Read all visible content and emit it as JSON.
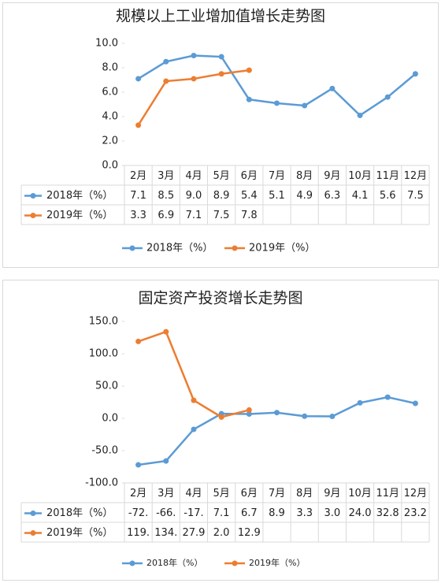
{
  "chart_data": [
    {
      "type": "line",
      "title": "规模以上工业增加值增长走势图",
      "categories": [
        "2月",
        "3月",
        "4月",
        "5月",
        "6月",
        "7月",
        "8月",
        "9月",
        "10月",
        "11月",
        "12月"
      ],
      "ylim": [
        0,
        10
      ],
      "yticks": [
        {
          "value": 0,
          "label": "0.0"
        },
        {
          "value": 2,
          "label": "2.0"
        },
        {
          "value": 4,
          "label": "4.0"
        },
        {
          "value": 6,
          "label": "6.0"
        },
        {
          "value": 8,
          "label": "8.0"
        },
        {
          "value": 10,
          "label": "10.0"
        }
      ],
      "grid": false,
      "legend": "bottom",
      "series": [
        {
          "name": "2018年（%）",
          "color": "#5b9bd5",
          "values": [
            7.1,
            8.5,
            9.0,
            8.9,
            5.4,
            5.1,
            4.9,
            6.3,
            4.1,
            5.6,
            7.5
          ],
          "value_labels": [
            "7.1",
            "8.5",
            "9.0",
            "8.9",
            "5.4",
            "5.1",
            "4.9",
            "6.3",
            "4.1",
            "5.6",
            "7.5"
          ]
        },
        {
          "name": "2019年（%）",
          "color": "#ed7d31",
          "values": [
            3.3,
            6.9,
            7.1,
            7.5,
            7.8,
            null,
            null,
            null,
            null,
            null,
            null
          ],
          "value_labels": [
            "3.3",
            "6.9",
            "7.1",
            "7.5",
            "7.8",
            null,
            null,
            null,
            null,
            null,
            null
          ]
        }
      ]
    },
    {
      "type": "line",
      "title": "固定资产投资增长走势图",
      "categories": [
        "2月",
        "3月",
        "4月",
        "5月",
        "6月",
        "7月",
        "8月",
        "9月",
        "10月",
        "11月",
        "12月"
      ],
      "ylim": [
        -100,
        150
      ],
      "yticks": [
        {
          "value": -100,
          "label": "-100.0"
        },
        {
          "value": -50,
          "label": "-50.0"
        },
        {
          "value": 0,
          "label": "0.0"
        },
        {
          "value": 50,
          "label": "50.0"
        },
        {
          "value": 100,
          "label": "100.0"
        },
        {
          "value": 150,
          "label": "150.0"
        }
      ],
      "grid": false,
      "legend": "bottom",
      "series": [
        {
          "name": "2018年（%）",
          "color": "#5b9bd5",
          "values": [
            -72,
            -66,
            -17,
            7.1,
            6.7,
            8.9,
            3.3,
            3.0,
            24.0,
            32.8,
            23.2
          ],
          "value_labels": [
            "-72.",
            "-66.",
            "-17.",
            "7.1",
            "6.7",
            "8.9",
            "3.3",
            "3.0",
            "24.0",
            "32.8",
            "23.2"
          ]
        },
        {
          "name": "2019年（%）",
          "color": "#ed7d31",
          "values": [
            119,
            134,
            27.9,
            2.0,
            12.9,
            null,
            null,
            null,
            null,
            null,
            null
          ],
          "value_labels": [
            "119.",
            "134.",
            "27.9",
            "2.0",
            "12.9",
            null,
            null,
            null,
            null,
            null,
            null
          ]
        }
      ]
    }
  ]
}
